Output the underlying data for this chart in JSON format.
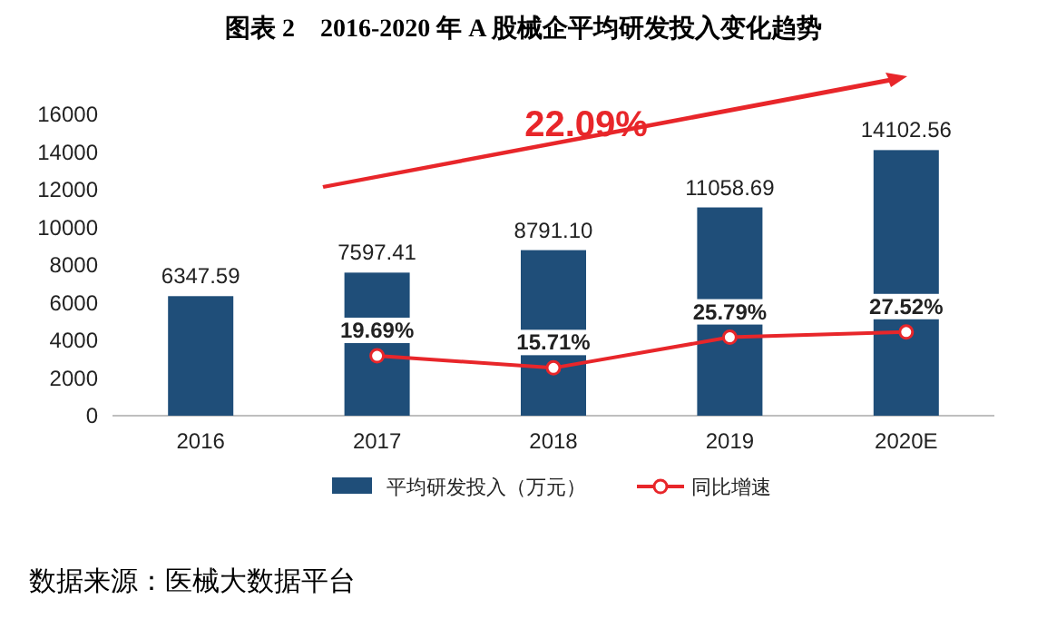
{
  "chart_data": {
    "type": "bar",
    "title": "图表 2　2016-2020 年 A 股械企平均研发投入变化趋势",
    "categories": [
      "2016",
      "2017",
      "2018",
      "2019",
      "2020E"
    ],
    "series": [
      {
        "name": "平均研发投入（万元）",
        "color": "#1f4e79",
        "values": [
          6347.59,
          7597.41,
          8791.1,
          11058.69,
          14102.56
        ],
        "value_labels": [
          "6347.59",
          "7597.41",
          "8791.10",
          "11058.69",
          "14102.56"
        ]
      },
      {
        "name": "同比增速",
        "type": "line",
        "axis": "y2",
        "color": "#e8262a",
        "marker": "circle",
        "values": [
          null,
          19.69,
          15.71,
          25.79,
          27.52
        ],
        "value_labels": [
          null,
          "19.69%",
          "15.71%",
          "25.79%",
          "27.52%"
        ]
      }
    ],
    "ylim": [
      0,
      16000
    ],
    "yticks": [
      0,
      2000,
      4000,
      6000,
      8000,
      10000,
      12000,
      14000,
      16000
    ],
    "grid": false,
    "legend": "bottom",
    "annotations": [
      "22.09%",
      "数据来源：医械大数据平台"
    ]
  }
}
